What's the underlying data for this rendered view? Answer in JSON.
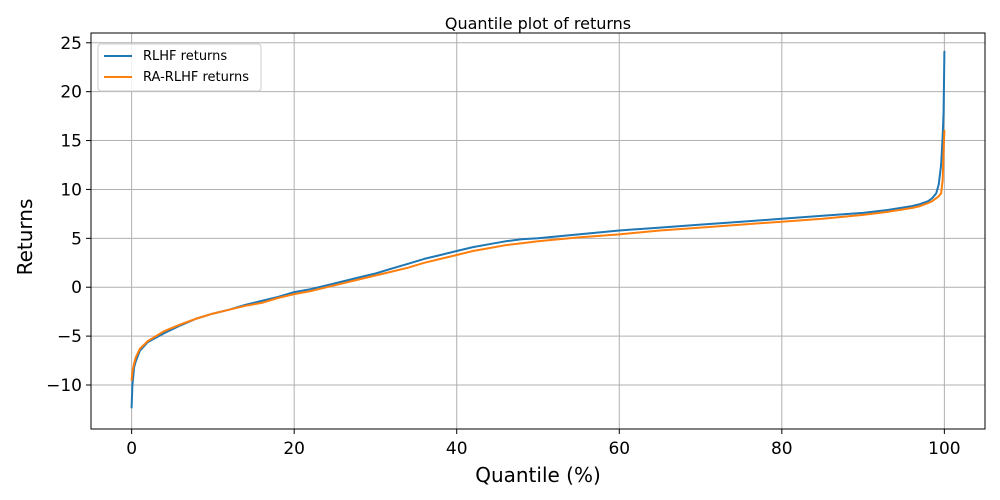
{
  "chart_data": {
    "type": "line",
    "title": "Quantile plot of returns",
    "xlabel": "Quantile (%)",
    "ylabel": "Returns",
    "xlim": [
      -5,
      105
    ],
    "ylim": [
      -14.5,
      26
    ],
    "xticks": [
      0,
      20,
      40,
      60,
      80,
      100
    ],
    "xtick_labels": [
      "0",
      "20",
      "40",
      "60",
      "80",
      "100"
    ],
    "yticks": [
      -10,
      -5,
      0,
      5,
      10,
      15,
      20,
      25
    ],
    "ytick_labels": [
      "−10",
      "−5",
      "0",
      "5",
      "10",
      "15",
      "20",
      "25"
    ],
    "grid": true,
    "legend_position": "top-left",
    "series": [
      {
        "name": "RLHF returns",
        "color": "#1f77b4",
        "x": [
          0,
          0.1,
          0.3,
          0.5,
          1,
          2,
          4,
          6,
          8,
          10,
          12,
          14,
          16,
          18,
          20,
          22,
          24,
          26,
          28,
          30,
          32,
          34,
          36,
          38,
          40,
          42,
          44,
          46,
          48,
          50,
          55,
          60,
          65,
          70,
          75,
          80,
          85,
          90,
          93,
          96,
          97,
          98,
          98.5,
          99,
          99.3,
          99.6,
          99.8,
          99.9,
          100
        ],
        "y": [
          -12.3,
          -10.0,
          -8.2,
          -7.6,
          -6.5,
          -5.6,
          -4.7,
          -3.9,
          -3.2,
          -2.7,
          -2.3,
          -1.8,
          -1.4,
          -1.0,
          -0.5,
          -0.2,
          0.2,
          0.6,
          1.0,
          1.4,
          1.9,
          2.4,
          2.9,
          3.3,
          3.7,
          4.1,
          4.4,
          4.7,
          4.9,
          5.0,
          5.4,
          5.8,
          6.1,
          6.4,
          6.7,
          7.0,
          7.3,
          7.6,
          7.9,
          8.3,
          8.5,
          8.8,
          9.1,
          9.6,
          10.5,
          12.5,
          15.5,
          18.0,
          24.1
        ]
      },
      {
        "name": "RA-RLHF returns",
        "color": "#ff7f0e",
        "x": [
          0,
          0.1,
          0.3,
          0.5,
          1,
          2,
          4,
          6,
          8,
          10,
          12,
          14,
          16,
          18,
          20,
          22,
          24,
          26,
          28,
          30,
          32,
          34,
          36,
          38,
          40,
          42,
          44,
          46,
          48,
          50,
          55,
          60,
          65,
          70,
          75,
          80,
          85,
          90,
          93,
          96,
          97,
          98,
          98.5,
          99,
          99.3,
          99.6,
          99.8,
          99.9,
          100
        ],
        "y": [
          -9.5,
          -8.6,
          -7.8,
          -7.2,
          -6.3,
          -5.5,
          -4.5,
          -3.8,
          -3.2,
          -2.7,
          -2.3,
          -1.9,
          -1.6,
          -1.1,
          -0.7,
          -0.4,
          0.0,
          0.4,
          0.8,
          1.2,
          1.6,
          2.0,
          2.5,
          2.9,
          3.3,
          3.7,
          4.0,
          4.3,
          4.5,
          4.7,
          5.1,
          5.4,
          5.8,
          6.1,
          6.4,
          6.7,
          7.0,
          7.4,
          7.7,
          8.1,
          8.3,
          8.6,
          8.8,
          9.1,
          9.3,
          9.6,
          11.0,
          14.0,
          16.0
        ]
      }
    ]
  }
}
